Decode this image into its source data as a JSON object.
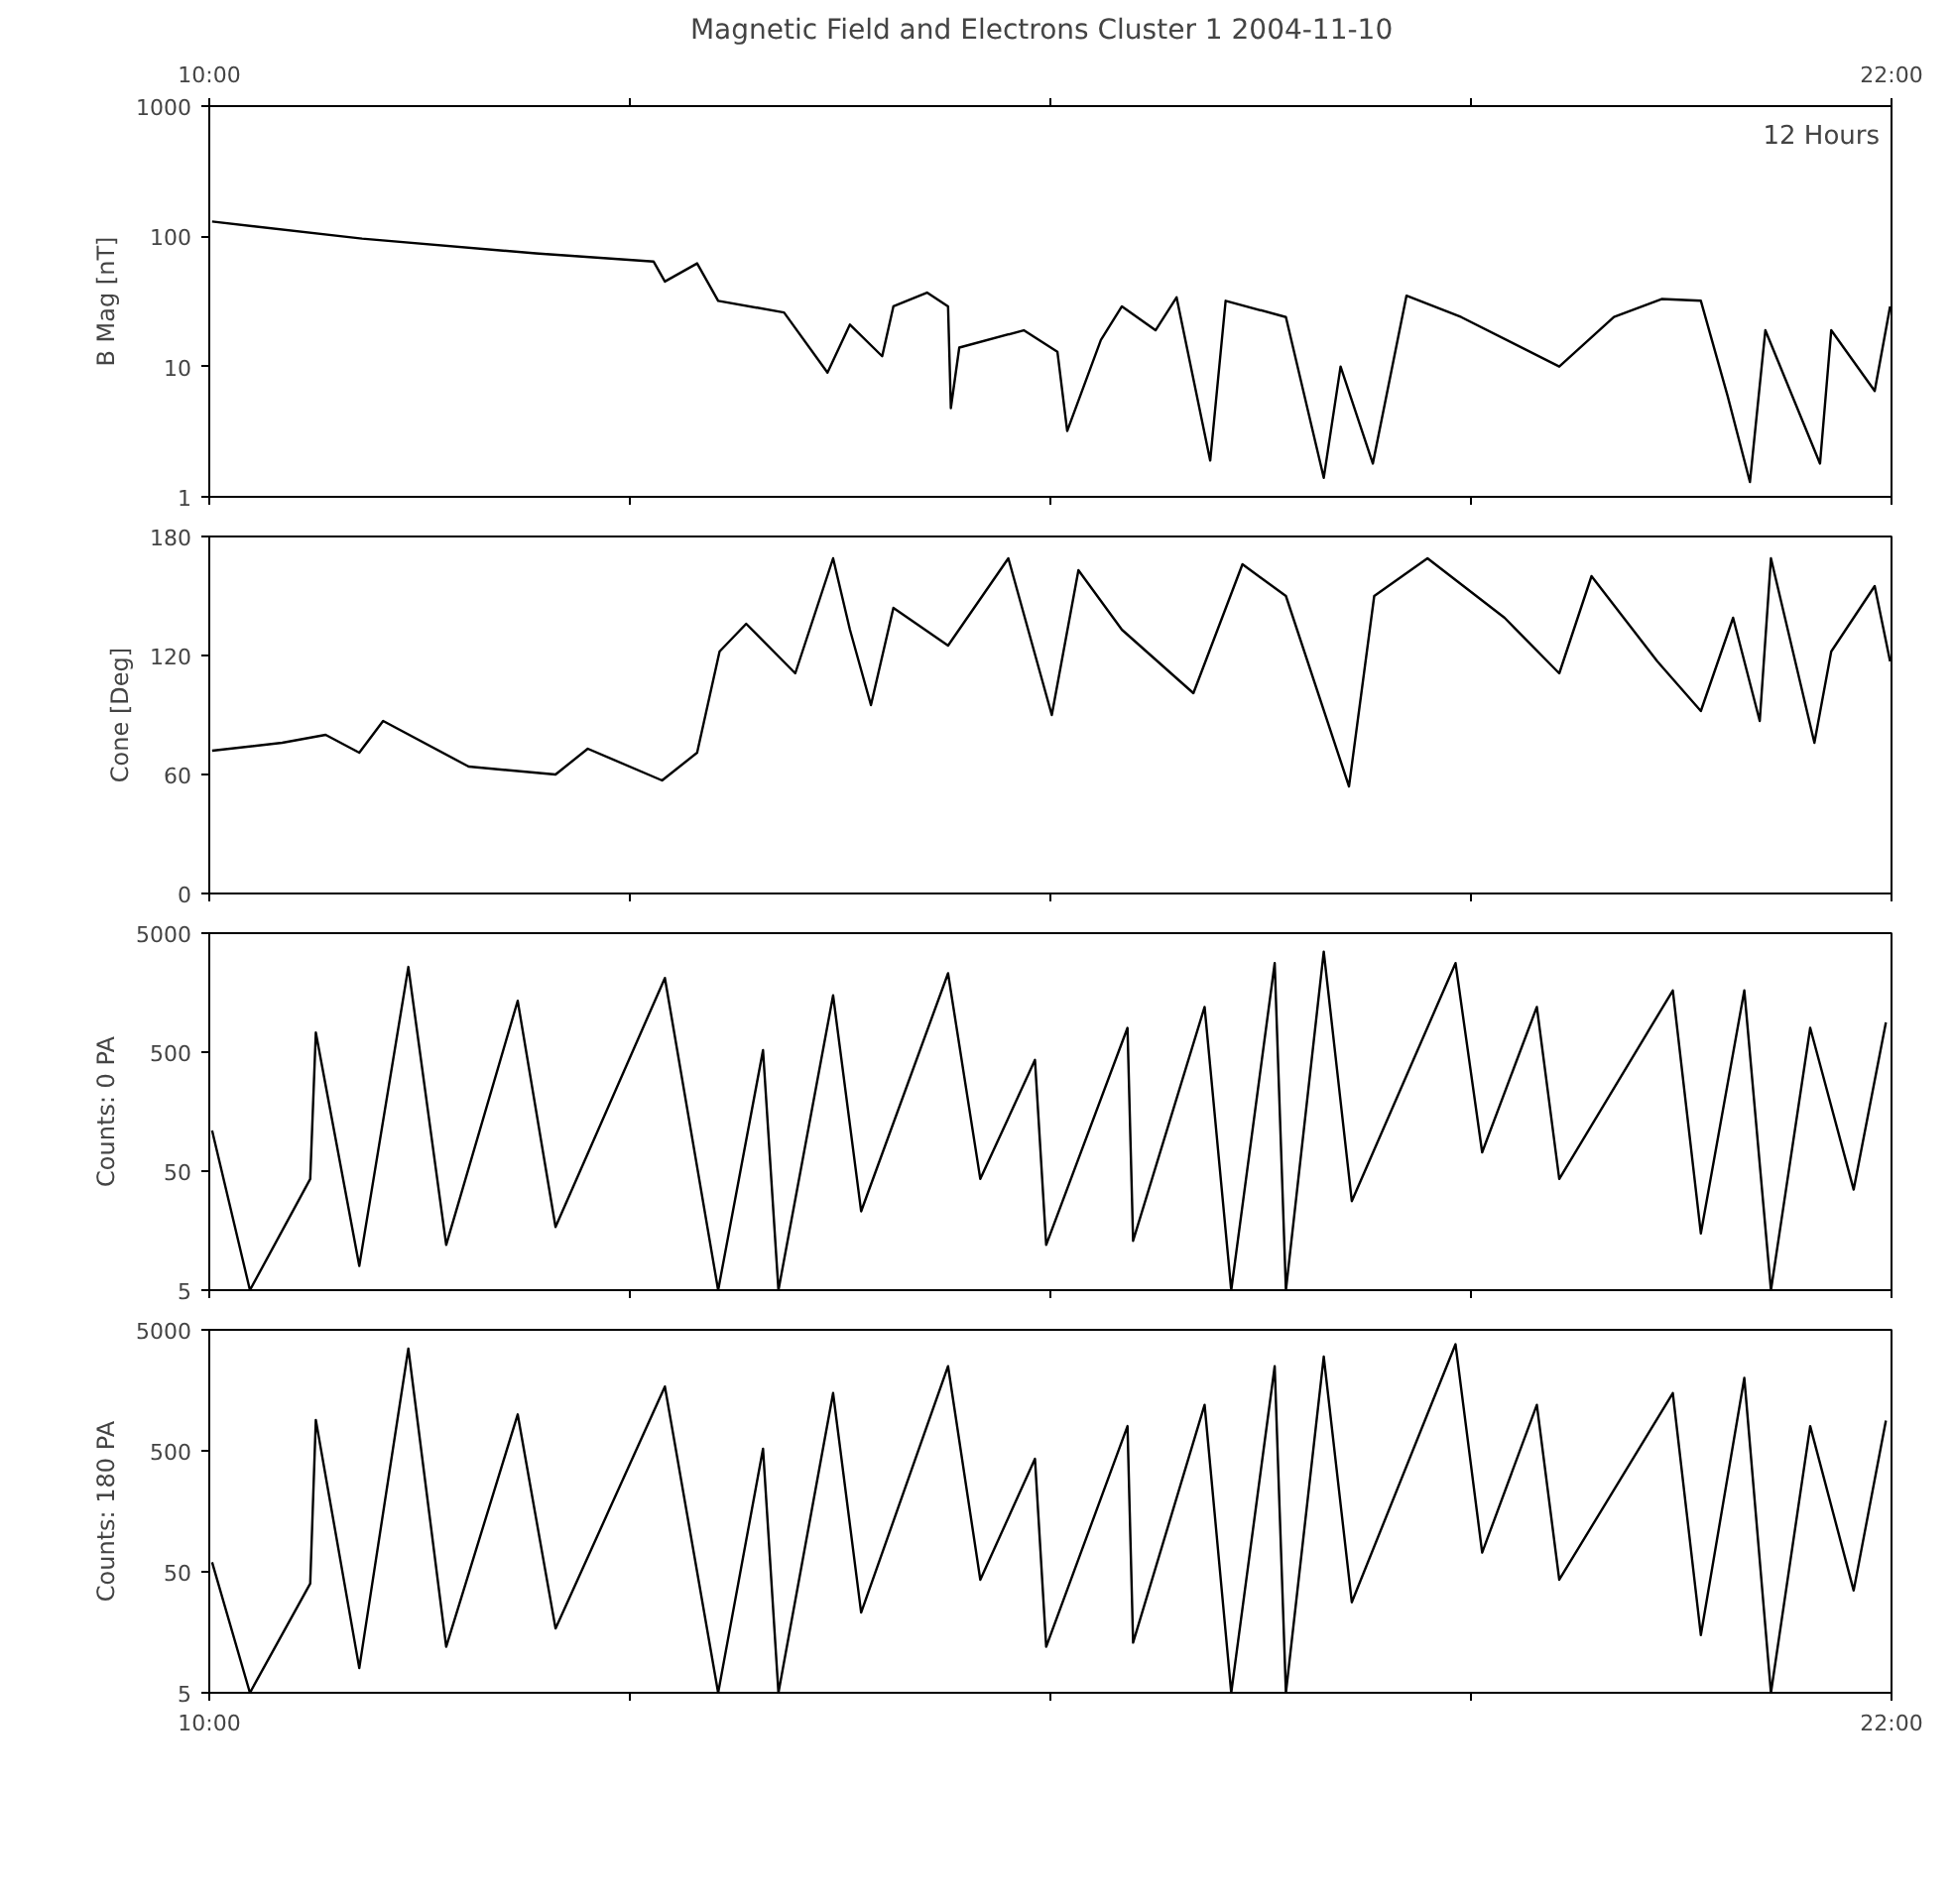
{
  "chart_data": [
    {
      "type": "line",
      "title": "Magnetic Field and Electrons Cluster 1   2004-11-10",
      "ylabel": "B Mag [nT]",
      "log": "y",
      "grid": false,
      "annotations": [
        "12 Hours"
      ],
      "xlim": [
        10,
        22
      ],
      "x2lim": [
        10,
        22
      ],
      "x2ticks": [
        {
          "value": 10,
          "label": "10:00"
        },
        {
          "value": 13,
          "label": null
        },
        {
          "value": 16,
          "label": null
        },
        {
          "value": 19,
          "label": null
        },
        {
          "value": 22,
          "label": "22:00"
        }
      ],
      "ylim": [
        1,
        1000
      ],
      "yticks": [
        1,
        10,
        100,
        1000
      ],
      "x": [
        10.02,
        11.09,
        12.33,
        13.17,
        13.25,
        13.48,
        13.63,
        14.1,
        14.41,
        14.57,
        14.8,
        14.88,
        15.12,
        15.27,
        15.29,
        15.35,
        15.81,
        16.05,
        16.12,
        16.36,
        16.51,
        16.75,
        16.9,
        17.14,
        17.25,
        17.68,
        17.95,
        18.07,
        18.3,
        18.54,
        18.93,
        19.63,
        20.02,
        20.36,
        20.64,
        20.83,
        20.99,
        21.1,
        21.49,
        21.57,
        21.88,
        21.99
      ],
      "series": [
        {
          "color": "#000000",
          "values": [
            130,
            96,
            74,
            64,
            45,
            62,
            32,
            26,
            9,
            21,
            12,
            29,
            37,
            29,
            4.8,
            14,
            19,
            13,
            3.2,
            16,
            29,
            19,
            34,
            1.9,
            32,
            24,
            1.4,
            10,
            1.8,
            35,
            24,
            10,
            24,
            33,
            32,
            6,
            1.3,
            19,
            1.8,
            19,
            6.5,
            29
          ]
        }
      ]
    },
    {
      "type": "line",
      "ylabel": "Cone [Deg]",
      "grid": false,
      "tick_labels": "y",
      "xlim": [
        10,
        22
      ],
      "xticks": [
        10,
        13,
        16,
        19,
        22
      ],
      "ylim": [
        0,
        180
      ],
      "yticks": [
        0,
        60,
        120,
        180
      ],
      "x": [
        10.02,
        10.52,
        10.83,
        11.07,
        11.24,
        11.85,
        12.47,
        12.7,
        13.23,
        13.48,
        13.64,
        13.83,
        14.18,
        14.45,
        14.57,
        14.72,
        14.88,
        15.27,
        15.7,
        16.01,
        16.2,
        16.51,
        17.02,
        17.37,
        17.68,
        18.13,
        18.31,
        18.69,
        19.24,
        19.63,
        19.86,
        20.33,
        20.64,
        20.87,
        21.06,
        21.14,
        21.45,
        21.57,
        21.88,
        21.99
      ],
      "series": [
        {
          "color": "#000000",
          "values": [
            72,
            76,
            80,
            71,
            87,
            64,
            60,
            73,
            57,
            71,
            122,
            136,
            111,
            169,
            133,
            95,
            144,
            125,
            169,
            90,
            163,
            133,
            101,
            166,
            150,
            54,
            150,
            169,
            139,
            111,
            160,
            117,
            92,
            139,
            87,
            169,
            76,
            122,
            155,
            117
          ]
        }
      ]
    },
    {
      "type": "line",
      "ylabel": "Counts: 0 PA",
      "log": "y",
      "grid": false,
      "tick_labels": "y",
      "xlim": [
        10,
        22
      ],
      "xticks": [
        10,
        13,
        16,
        19,
        22
      ],
      "ylim": [
        5,
        5000
      ],
      "yticks": [
        5,
        50,
        500,
        5000
      ],
      "x": [
        10.02,
        10.29,
        10.72,
        10.76,
        11.07,
        11.42,
        11.69,
        12.2,
        12.47,
        13.25,
        13.63,
        13.95,
        14.06,
        14.45,
        14.65,
        15.27,
        15.5,
        15.89,
        15.97,
        16.55,
        16.59,
        17.1,
        17.29,
        17.6,
        17.68,
        17.95,
        18.15,
        18.89,
        19.08,
        19.47,
        19.63,
        20.44,
        20.64,
        20.95,
        21.14,
        21.42,
        21.73,
        21.96
      ],
      "series": [
        {
          "color": "#000000",
          "values": [
            110,
            5,
            43,
            730,
            8,
            2600,
            12,
            1350,
            17,
            2100,
            5,
            520,
            5,
            1500,
            23,
            2300,
            43,
            430,
            12,
            800,
            13,
            1200,
            5,
            2800,
            5,
            3500,
            28,
            2800,
            72,
            1200,
            43,
            1650,
            15,
            1650,
            5,
            800,
            35,
            890
          ]
        }
      ]
    },
    {
      "type": "line",
      "ylabel": "Counts: 180 PA",
      "log": "y",
      "grid": false,
      "xlim": [
        10,
        22
      ],
      "xticks": [
        {
          "value": 10,
          "label": "10:00"
        },
        {
          "value": 13,
          "label": null
        },
        {
          "value": 16,
          "label": null
        },
        {
          "value": 19,
          "label": null
        },
        {
          "value": 22,
          "label": "22:00"
        }
      ],
      "ylim": [
        5,
        5000
      ],
      "yticks": [
        5,
        50,
        500,
        5000
      ],
      "x": [
        10.02,
        10.29,
        10.72,
        10.76,
        11.07,
        11.42,
        11.69,
        12.2,
        12.47,
        13.25,
        13.63,
        13.95,
        14.06,
        14.45,
        14.65,
        15.27,
        15.5,
        15.89,
        15.97,
        16.55,
        16.59,
        17.1,
        17.29,
        17.6,
        17.68,
        17.95,
        18.15,
        18.89,
        19.08,
        19.47,
        19.63,
        20.44,
        20.64,
        20.95,
        21.14,
        21.42,
        21.73,
        21.96
      ],
      "series": [
        {
          "color": "#000000",
          "values": [
            60,
            5,
            40,
            900,
            8,
            3500,
            12,
            1000,
            17,
            1700,
            5,
            520,
            5,
            1500,
            23,
            2500,
            43,
            430,
            12,
            800,
            13,
            1200,
            5,
            2500,
            5,
            3000,
            28,
            3800,
            72,
            1200,
            43,
            1500,
            15,
            2000,
            5,
            800,
            35,
            890
          ]
        }
      ]
    }
  ]
}
